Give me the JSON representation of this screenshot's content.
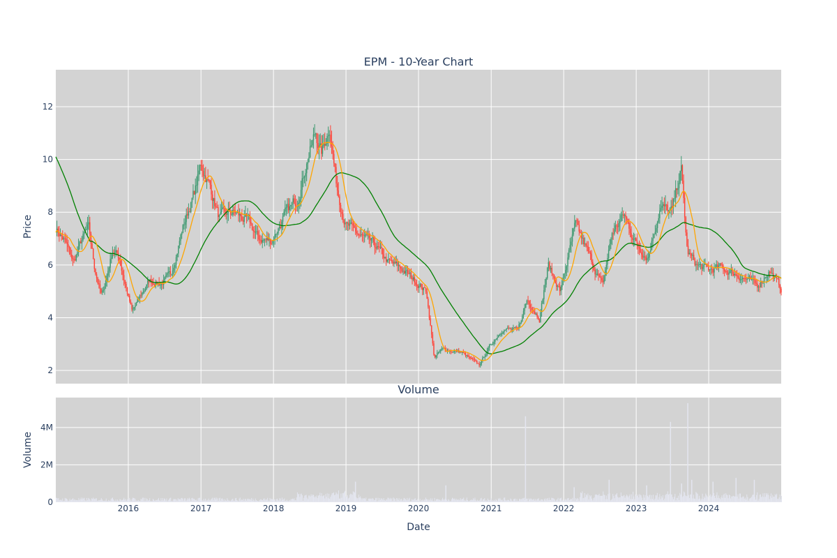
{
  "chart_data": [
    {
      "type": "candlestick",
      "title": "EPM - 10-Year Chart",
      "ylabel": "Price",
      "ylim": [
        1.5,
        13.4
      ],
      "yticks": [
        2,
        4,
        6,
        8,
        10,
        12
      ],
      "x_range": [
        "2015-01-01",
        "2024-12-31"
      ],
      "xticks": [
        "2016",
        "2017",
        "2018",
        "2019",
        "2020",
        "2021",
        "2022",
        "2023",
        "2024"
      ],
      "grid": true,
      "increasing_color": "#3d9970",
      "decreasing_color": "#ff4136",
      "price_anchors": [
        [
          "2015-01-01",
          7.4
        ],
        [
          "2015-02-15",
          6.9
        ],
        [
          "2015-04-01",
          6.1
        ],
        [
          "2015-05-15",
          7.0
        ],
        [
          "2015-06-15",
          7.4
        ],
        [
          "2015-07-15",
          5.9
        ],
        [
          "2015-08-20",
          4.8
        ],
        [
          "2015-09-15",
          5.6
        ],
        [
          "2015-10-15",
          6.6
        ],
        [
          "2015-11-15",
          6.3
        ],
        [
          "2016-01-20",
          4.2
        ],
        [
          "2016-03-01",
          4.8
        ],
        [
          "2016-04-15",
          5.4
        ],
        [
          "2016-06-15",
          5.3
        ],
        [
          "2016-08-01",
          5.6
        ],
        [
          "2016-10-01",
          7.4
        ],
        [
          "2016-12-01",
          8.8
        ],
        [
          "2017-01-01",
          9.8
        ],
        [
          "2017-02-15",
          9.0
        ],
        [
          "2017-04-01",
          7.8
        ],
        [
          "2017-06-15",
          8.0
        ],
        [
          "2017-09-01",
          7.6
        ],
        [
          "2017-10-15",
          7.0
        ],
        [
          "2017-12-20",
          6.9
        ],
        [
          "2018-03-01",
          7.9
        ],
        [
          "2018-05-01",
          8.5
        ],
        [
          "2018-06-20",
          10.0
        ],
        [
          "2018-08-01",
          11.0
        ],
        [
          "2018-09-01",
          10.2
        ],
        [
          "2018-10-10",
          11.3
        ],
        [
          "2018-11-15",
          9.0
        ],
        [
          "2019-01-01",
          7.5
        ],
        [
          "2019-04-01",
          7.0
        ],
        [
          "2019-06-01",
          6.7
        ],
        [
          "2019-08-01",
          6.1
        ],
        [
          "2019-10-01",
          5.9
        ],
        [
          "2019-12-01",
          5.5
        ],
        [
          "2020-02-10",
          5.0
        ],
        [
          "2020-03-20",
          2.5
        ],
        [
          "2020-05-01",
          2.8
        ],
        [
          "2020-08-01",
          2.7
        ],
        [
          "2020-11-01",
          2.2
        ],
        [
          "2021-01-01",
          3.0
        ],
        [
          "2021-03-01",
          3.6
        ],
        [
          "2021-05-15",
          3.5
        ],
        [
          "2021-07-01",
          4.7
        ],
        [
          "2021-09-01",
          4.0
        ],
        [
          "2021-10-15",
          6.0
        ],
        [
          "2021-12-15",
          5.0
        ],
        [
          "2022-03-01",
          7.5
        ],
        [
          "2022-05-01",
          6.5
        ],
        [
          "2022-07-15",
          5.2
        ],
        [
          "2022-09-01",
          7.2
        ],
        [
          "2022-11-01",
          7.9
        ],
        [
          "2023-01-01",
          6.8
        ],
        [
          "2023-03-01",
          6.3
        ],
        [
          "2023-05-01",
          8.2
        ],
        [
          "2023-07-01",
          8.0
        ],
        [
          "2023-08-15",
          9.7
        ],
        [
          "2023-09-15",
          6.5
        ],
        [
          "2023-11-01",
          6.0
        ],
        [
          "2024-01-01",
          5.8
        ],
        [
          "2024-03-01",
          5.9
        ],
        [
          "2024-05-01",
          5.7
        ],
        [
          "2024-07-01",
          5.5
        ],
        [
          "2024-09-01",
          5.2
        ],
        [
          "2024-11-01",
          5.8
        ],
        [
          "2024-12-31",
          5.1
        ]
      ]
    },
    {
      "type": "bar",
      "title": "Volume",
      "xlabel": "Date",
      "ylabel": "Volume",
      "ylim": [
        0,
        5.6
      ],
      "unit": "millions",
      "yticks": [
        0,
        2,
        4
      ],
      "ytick_labels": [
        "0",
        "2M",
        "4M"
      ],
      "grid": true,
      "bar_color": "#e4e6f0",
      "volume_spikes": [
        [
          "2019-02-15",
          1.1
        ],
        [
          "2020-05-15",
          0.9
        ],
        [
          "2021-06-20",
          4.6
        ],
        [
          "2022-02-20",
          0.8
        ],
        [
          "2022-08-15",
          1.2
        ],
        [
          "2023-02-20",
          0.9
        ],
        [
          "2023-06-20",
          4.3
        ],
        [
          "2023-08-15",
          1.0
        ],
        [
          "2023-09-15",
          5.3
        ],
        [
          "2023-10-05",
          1.2
        ],
        [
          "2024-01-20",
          1.1
        ],
        [
          "2024-05-15",
          1.3
        ],
        [
          "2024-08-15",
          1.2
        ]
      ]
    }
  ]
}
